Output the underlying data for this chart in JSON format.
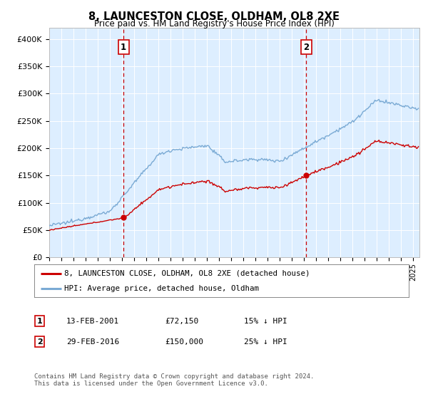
{
  "title": "8, LAUNCESTON CLOSE, OLDHAM, OL8 2XE",
  "subtitle": "Price paid vs. HM Land Registry's House Price Index (HPI)",
  "ylabel_ticks": [
    "£0",
    "£50K",
    "£100K",
    "£150K",
    "£200K",
    "£250K",
    "£300K",
    "£350K",
    "£400K"
  ],
  "ytick_values": [
    0,
    50000,
    100000,
    150000,
    200000,
    250000,
    300000,
    350000,
    400000
  ],
  "ylim": [
    0,
    420000
  ],
  "xlim_start": 1995.0,
  "xlim_end": 2025.5,
  "hpi_color": "#7aaad4",
  "price_color": "#cc0000",
  "marker1_date": 2001.12,
  "marker1_price": 72150,
  "marker1_label": "13-FEB-2001",
  "marker1_amount": "£72,150",
  "marker1_pct": "15% ↓ HPI",
  "marker2_date": 2016.17,
  "marker2_price": 150000,
  "marker2_label": "29-FEB-2016",
  "marker2_amount": "£150,000",
  "marker2_pct": "25% ↓ HPI",
  "legend_line1": "8, LAUNCESTON CLOSE, OLDHAM, OL8 2XE (detached house)",
  "legend_line2": "HPI: Average price, detached house, Oldham",
  "footnote": "Contains HM Land Registry data © Crown copyright and database right 2024.\nThis data is licensed under the Open Government Licence v3.0.",
  "plot_bg_color": "#ddeeff"
}
